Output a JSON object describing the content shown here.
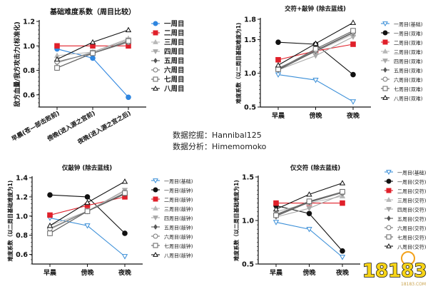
{
  "credits": {
    "mining_label": "数据挖掘：",
    "mining_value": "Hannibal125",
    "analysis_label": "数据分析：",
    "analysis_value": "Himemomoko"
  },
  "watermark": {
    "text": "18183",
    "sub": "18183.COM"
  },
  "chart_data": [
    {
      "type": "line",
      "title": "基础难度系数（周目比较）",
      "xlabel": "",
      "ylabel": "敌方血量/我方攻击力(标准化)",
      "categories": [
        "早晨(苍—部击败前)",
        "傍晚(进入源之宫前)",
        "夜晚(进入源之宫之后)"
      ],
      "ylim": [
        0.5,
        1.2
      ],
      "yticks": [
        0.6,
        0.8,
        1.0,
        1.2
      ],
      "ytick_labels": [
        "0.6",
        "0.8",
        "1.0",
        "1.2"
      ],
      "legend": "right",
      "series": [
        {
          "name": "一周目",
          "color": "#2f86e0",
          "marker": "circle-filled",
          "values": [
            0.975,
            0.9,
            0.58
          ]
        },
        {
          "name": "二周目",
          "color": "#e0202a",
          "marker": "square-filled",
          "values": [
            1.0,
            1.0,
            1.0
          ]
        },
        {
          "name": "三周目",
          "color": "#b8b8b8",
          "marker": "triangle-filled",
          "values": [
            0.92,
            0.95,
            1.06
          ]
        },
        {
          "name": "四周目",
          "color": "#a8a8a8",
          "marker": "triangle-down-filled",
          "values": [
            0.86,
            0.95,
            1.05
          ]
        },
        {
          "name": "五周目",
          "color": "#555555",
          "marker": "diamond-filled",
          "values": [
            0.82,
            0.94,
            1.03
          ]
        },
        {
          "name": "六周目",
          "color": "#777777",
          "marker": "circle-open",
          "values": [
            0.87,
            0.94,
            1.03
          ]
        },
        {
          "name": "七周目",
          "color": "#666666",
          "marker": "square-open",
          "values": [
            0.82,
            0.94,
            1.04
          ]
        },
        {
          "name": "八周目",
          "color": "#111111",
          "marker": "triangle-open",
          "values": [
            0.89,
            1.03,
            1.13
          ]
        }
      ]
    },
    {
      "type": "line",
      "title": "交符+敲钟 (除去蓝线)",
      "xlabel": "",
      "ylabel": "难度系数（以二周目基础难度为1)",
      "categories": [
        "早晨",
        "傍晚",
        "夜晚"
      ],
      "ylim": [
        0.5,
        1.8
      ],
      "yticks": [
        0.5,
        1.0,
        1.5,
        1.8
      ],
      "ytick_labels": [
        "0.5",
        "1.0",
        "1.5",
        "1.8"
      ],
      "legend": "right",
      "series": [
        {
          "name": "一周目(基础)",
          "color": "#3b8fd8",
          "marker": "triangle-down-open",
          "values": [
            0.98,
            0.9,
            0.58
          ]
        },
        {
          "name": "一周目(双难)",
          "color": "#111111",
          "marker": "circle-filled",
          "values": [
            1.46,
            1.43,
            0.98
          ]
        },
        {
          "name": "二周目(双难)",
          "color": "#e0202a",
          "marker": "square-filled",
          "values": [
            1.2,
            1.33,
            1.43
          ]
        },
        {
          "name": "三周目(双难)",
          "color": "#b8b8b8",
          "marker": "triangle-filled",
          "values": [
            1.08,
            1.32,
            1.58
          ]
        },
        {
          "name": "四周目(双难)",
          "color": "#a8a8a8",
          "marker": "triangle-down-filled",
          "values": [
            1.05,
            1.26,
            1.54
          ]
        },
        {
          "name": "五周目(双难)",
          "color": "#555555",
          "marker": "diamond-filled",
          "values": [
            1.05,
            1.33,
            1.6
          ]
        },
        {
          "name": "六周目(双难)",
          "color": "#777777",
          "marker": "circle-open",
          "values": [
            1.07,
            1.34,
            1.61
          ]
        },
        {
          "name": "七周目(双难)",
          "color": "#666666",
          "marker": "square-open",
          "values": [
            1.06,
            1.36,
            1.63
          ]
        },
        {
          "name": "八周目(双难)",
          "color": "#111111",
          "marker": "triangle-open",
          "values": [
            1.12,
            1.44,
            1.75
          ]
        }
      ]
    },
    {
      "type": "line",
      "title": "仅敲钟 (除去蓝线)",
      "xlabel": "",
      "ylabel": "难度系数（以二周目基础难度为1)",
      "categories": [
        "早晨",
        "傍晚",
        "夜晚"
      ],
      "ylim": [
        0.5,
        1.4
      ],
      "yticks": [
        0.6,
        0.8,
        1.0,
        1.2,
        1.4
      ],
      "ytick_labels": [
        "0.6",
        "0.8",
        "1.0",
        "1.2",
        "1.4"
      ],
      "legend": "right",
      "series": [
        {
          "name": "一周目(基础)",
          "color": "#3b8fd8",
          "marker": "triangle-down-open",
          "values": [
            0.98,
            0.9,
            0.58
          ]
        },
        {
          "name": "一周目(敲钟)",
          "color": "#111111",
          "marker": "circle-filled",
          "values": [
            1.22,
            1.2,
            0.82
          ]
        },
        {
          "name": "二周目(敲钟)",
          "color": "#e0202a",
          "marker": "square-filled",
          "values": [
            1.01,
            1.11,
            1.2
          ]
        },
        {
          "name": "三周目(敲钟)",
          "color": "#b8b8b8",
          "marker": "triangle-filled",
          "values": [
            0.9,
            1.05,
            1.26
          ]
        },
        {
          "name": "四周目(敲钟)",
          "color": "#a8a8a8",
          "marker": "triangle-down-filled",
          "values": [
            0.86,
            1.05,
            1.27
          ]
        },
        {
          "name": "五周目(敲钟)",
          "color": "#555555",
          "marker": "diamond-filled",
          "values": [
            0.82,
            1.05,
            1.23
          ]
        },
        {
          "name": "六周目(敲钟)",
          "color": "#777777",
          "marker": "circle-open",
          "values": [
            0.87,
            1.05,
            1.24
          ]
        },
        {
          "name": "七周目(敲钟)",
          "color": "#666666",
          "marker": "square-open",
          "values": [
            0.82,
            1.05,
            1.24
          ]
        },
        {
          "name": "八周目(敲钟)",
          "color": "#111111",
          "marker": "triangle-open",
          "values": [
            0.9,
            1.14,
            1.36
          ]
        }
      ]
    },
    {
      "type": "line",
      "title": "仅交符 (除去蓝线)",
      "xlabel": "",
      "ylabel": "难度系数（以二周目基础难度为1)",
      "categories": [
        "早晨",
        "傍晚",
        "夜晚"
      ],
      "ylim": [
        0.5,
        1.5
      ],
      "yticks": [
        0.5,
        1.0,
        1.5
      ],
      "ytick_labels": [
        "0.5",
        "1.0",
        "1.5"
      ],
      "legend": "right",
      "series": [
        {
          "name": "一周目(基础)",
          "color": "#3b8fd8",
          "marker": "triangle-down-open",
          "values": [
            0.98,
            0.9,
            0.58
          ]
        },
        {
          "name": "一周目(交符)",
          "color": "#111111",
          "marker": "circle-filled",
          "values": [
            1.17,
            1.08,
            0.65
          ]
        },
        {
          "name": "二周目(交符)",
          "color": "#e0202a",
          "marker": "square-filled",
          "values": [
            1.2,
            1.2,
            1.2
          ]
        },
        {
          "name": "三周目(交符)",
          "color": "#b8b8b8",
          "marker": "triangle-filled",
          "values": [
            1.1,
            1.2,
            1.28
          ]
        },
        {
          "name": "四周目(交符)",
          "color": "#a8a8a8",
          "marker": "triangle-down-filled",
          "values": [
            1.04,
            1.14,
            1.3
          ]
        },
        {
          "name": "五周目(交符)",
          "color": "#555555",
          "marker": "diamond-filled",
          "values": [
            1.05,
            1.21,
            1.32
          ]
        },
        {
          "name": "六周目(交符)",
          "color": "#777777",
          "marker": "circle-open",
          "values": [
            1.07,
            1.22,
            1.32
          ]
        },
        {
          "name": "七周目(交符)",
          "color": "#666666",
          "marker": "square-open",
          "values": [
            1.06,
            1.22,
            1.33
          ]
        },
        {
          "name": "八周目(交符)",
          "color": "#111111",
          "marker": "triangle-open",
          "values": [
            1.13,
            1.3,
            1.43
          ]
        }
      ]
    }
  ]
}
